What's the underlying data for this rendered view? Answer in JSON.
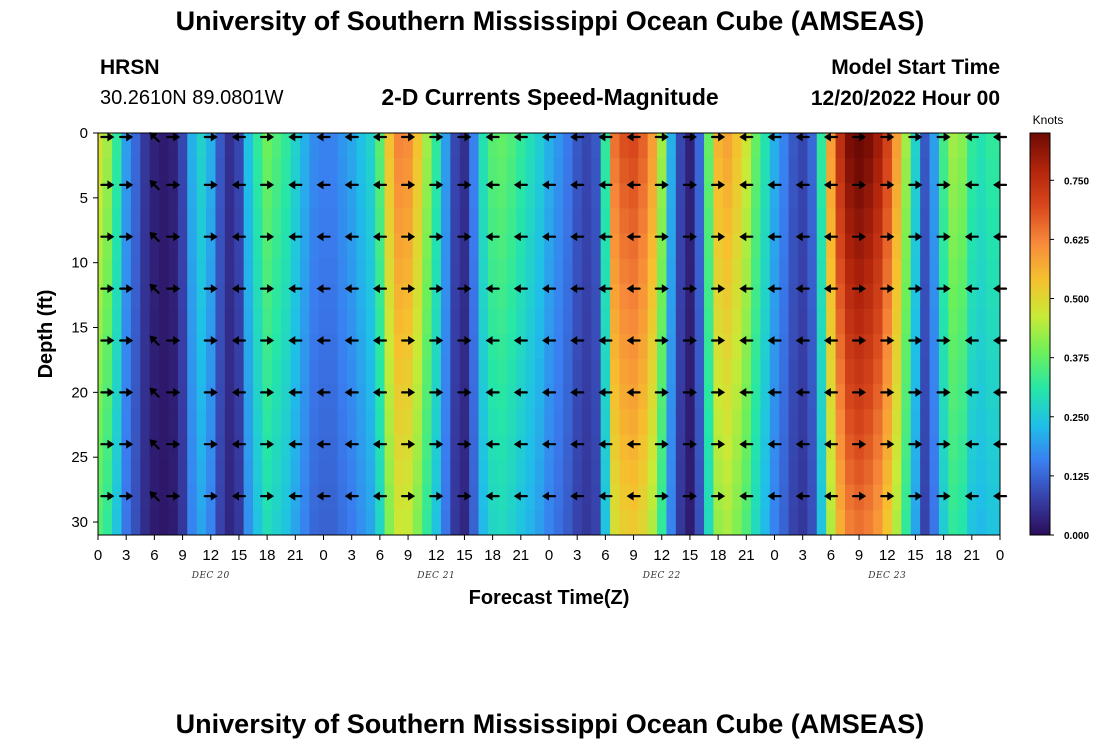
{
  "header": {
    "title": "University of Southern Mississippi Ocean Cube (AMSEAS)",
    "station": "HRSN",
    "coords": "30.2610N  89.0801W",
    "subtitle": "2-D Currents Speed-Magnitude",
    "model_start_label": "Model Start Time",
    "model_start_value": "12/20/2022 Hour 00"
  },
  "footer": {
    "title": "University of Southern Mississippi Ocean Cube (AMSEAS)"
  },
  "colors": {
    "colormap": [
      "#2b0c58",
      "#3740a8",
      "#3a7df0",
      "#1fbfe8",
      "#25e6a8",
      "#6cf05a",
      "#c9ea36",
      "#f6c02e",
      "#f7893a",
      "#d8481c",
      "#b1240c",
      "#6e0a05"
    ]
  },
  "chart_data": {
    "type": "heatmap",
    "title": "2-D Currents Speed-Magnitude",
    "xlabel": "Forecast Time(Z)",
    "ylabel": "Depth (ft)",
    "x_unit": "hours since model start",
    "xlim": [
      0,
      96
    ],
    "ylim": [
      0,
      31
    ],
    "y_direction": "down",
    "x_ticks": [
      0,
      3,
      6,
      9,
      12,
      15,
      18,
      21,
      24,
      27,
      30,
      33,
      36,
      39,
      42,
      45,
      48,
      51,
      54,
      57,
      60,
      63,
      66,
      69,
      72,
      75,
      78,
      81,
      84,
      87,
      90,
      93,
      96
    ],
    "x_tick_labels": [
      "0",
      "3",
      "6",
      "9",
      "12",
      "15",
      "18",
      "21",
      "0",
      "3",
      "6",
      "9",
      "12",
      "15",
      "18",
      "21",
      "0",
      "3",
      "6",
      "9",
      "12",
      "15",
      "18",
      "21",
      "0",
      "3",
      "6",
      "9",
      "12",
      "15",
      "18",
      "21",
      "0"
    ],
    "y_ticks": [
      0,
      5,
      10,
      15,
      20,
      25,
      30
    ],
    "y_tick_labels": [
      "0",
      "5",
      "10",
      "15",
      "20",
      "25",
      "30"
    ],
    "date_labels": [
      {
        "label": "DEC 20",
        "hour": 12
      },
      {
        "label": "DEC 21",
        "hour": 36
      },
      {
        "label": "DEC 22",
        "hour": 60
      },
      {
        "label": "DEC 23",
        "hour": 84
      }
    ],
    "colorbar": {
      "units": "Knots",
      "min": 0.0,
      "max": 0.85,
      "ticks": [
        0.0,
        0.125,
        0.25,
        0.375,
        0.5,
        0.625,
        0.75
      ],
      "tick_labels": [
        "0.000",
        "0.125",
        "0.250",
        "0.375",
        "0.500",
        "0.625",
        "0.750"
      ]
    },
    "speed_profile": {
      "hours": [
        0,
        1,
        2,
        3,
        4,
        5,
        6,
        7,
        8,
        9,
        10,
        11,
        12,
        13,
        14,
        15,
        16,
        17,
        18,
        19,
        20,
        21,
        22,
        23,
        24,
        25,
        26,
        27,
        28,
        29,
        30,
        31,
        32,
        33,
        34,
        35,
        36,
        37,
        38,
        39,
        40,
        41,
        42,
        43,
        44,
        45,
        46,
        47,
        48,
        49,
        50,
        51,
        52,
        53,
        54,
        55,
        56,
        57,
        58,
        59,
        60,
        61,
        62,
        63,
        64,
        65,
        66,
        67,
        68,
        69,
        70,
        71,
        72,
        73,
        74,
        75,
        76,
        77,
        78,
        79,
        80,
        81,
        82,
        83,
        84,
        85,
        86,
        87,
        88,
        89,
        90,
        91,
        92,
        93,
        94,
        95,
        96
      ],
      "speed_knots": [
        0.45,
        0.4,
        0.3,
        0.18,
        0.12,
        0.06,
        0.03,
        0.02,
        0.03,
        0.08,
        0.2,
        0.25,
        0.2,
        0.1,
        0.05,
        0.08,
        0.22,
        0.3,
        0.36,
        0.33,
        0.3,
        0.25,
        0.2,
        0.16,
        0.15,
        0.15,
        0.17,
        0.19,
        0.22,
        0.25,
        0.34,
        0.5,
        0.58,
        0.57,
        0.5,
        0.4,
        0.3,
        0.18,
        0.08,
        0.05,
        0.15,
        0.28,
        0.34,
        0.35,
        0.33,
        0.3,
        0.27,
        0.24,
        0.2,
        0.17,
        0.14,
        0.1,
        0.08,
        0.1,
        0.3,
        0.6,
        0.64,
        0.65,
        0.62,
        0.55,
        0.4,
        0.2,
        0.08,
        0.03,
        0.12,
        0.35,
        0.52,
        0.54,
        0.5,
        0.44,
        0.35,
        0.28,
        0.2,
        0.15,
        0.1,
        0.08,
        0.12,
        0.3,
        0.55,
        0.7,
        0.78,
        0.8,
        0.78,
        0.74,
        0.66,
        0.55,
        0.4,
        0.25,
        0.1,
        0.18,
        0.32,
        0.4,
        0.38,
        0.3,
        0.28,
        0.3,
        0.3
      ]
    },
    "vectors": {
      "depths_ft": [
        0,
        4,
        8,
        12,
        16,
        20,
        24,
        28
      ],
      "hours": [
        1,
        3,
        6,
        8,
        12,
        15,
        18,
        21,
        24,
        27,
        30,
        33,
        36,
        39,
        42,
        45,
        48,
        51,
        54,
        57,
        60,
        63,
        66,
        69,
        72,
        75,
        78,
        81,
        84,
        87,
        90,
        93,
        96
      ],
      "direction": [
        "east",
        "east",
        "northwest",
        "east",
        "east",
        "west",
        "east",
        "west",
        "west",
        "west",
        "west",
        "east",
        "east",
        "east",
        "west",
        "west",
        "west",
        "west",
        "west",
        "west",
        "east",
        "east",
        "east",
        "west",
        "west",
        "west",
        "west",
        "east",
        "east",
        "east",
        "east",
        "west",
        "west"
      ]
    }
  }
}
